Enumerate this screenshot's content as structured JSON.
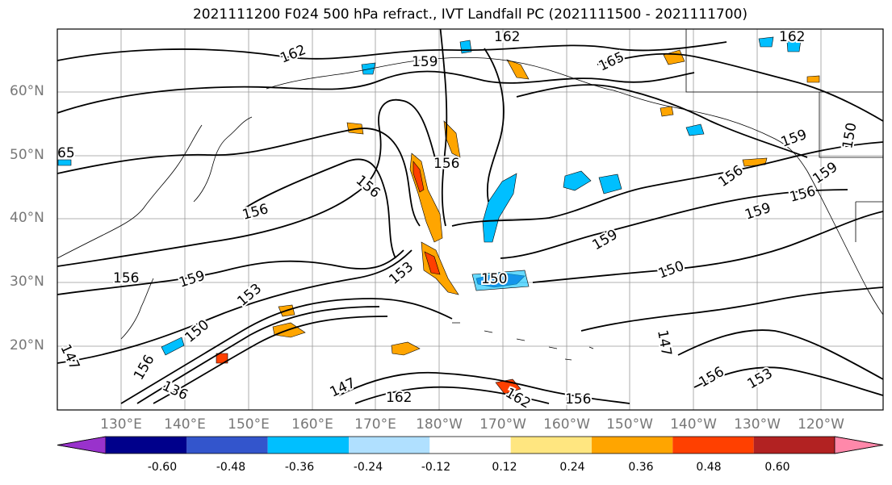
{
  "title": "2021111200 F024 500 hPa refract., IVT Landfall PC (2021111500 - 2021111700)",
  "lat_labels": [
    "60°N",
    "50°N",
    "40°N",
    "30°N",
    "20°N"
  ],
  "lon_labels": [
    "130°E",
    "140°E",
    "150°E",
    "160°E",
    "170°E",
    "180°W",
    "170°W",
    "160°W",
    "150°W",
    "140°W",
    "130°W",
    "120°W"
  ],
  "contour_labels": [
    "162",
    "162",
    "159",
    "165",
    "162",
    "65",
    "156",
    "159",
    "156",
    "156",
    "156",
    "159",
    "159",
    "156",
    "150",
    "159",
    "153",
    "156",
    "150",
    "159",
    "147",
    "150",
    "136",
    "147",
    "153",
    "162",
    "162",
    "156",
    "156",
    "147",
    "156",
    "150",
    "153"
  ],
  "colorbar": {
    "colors": [
      "#9932cc",
      "#00008b",
      "#3355cc",
      "#00bfff",
      "#b0e0ff",
      "#ffffff",
      "#ffe680",
      "#ffa500",
      "#ff4000",
      "#b22222",
      "#ff88aa"
    ],
    "tick_labels": [
      "-0.60",
      "-0.48",
      "-0.36",
      "-0.24",
      "-0.12",
      "0.12",
      "0.24",
      "0.36",
      "0.48",
      "0.60"
    ]
  }
}
